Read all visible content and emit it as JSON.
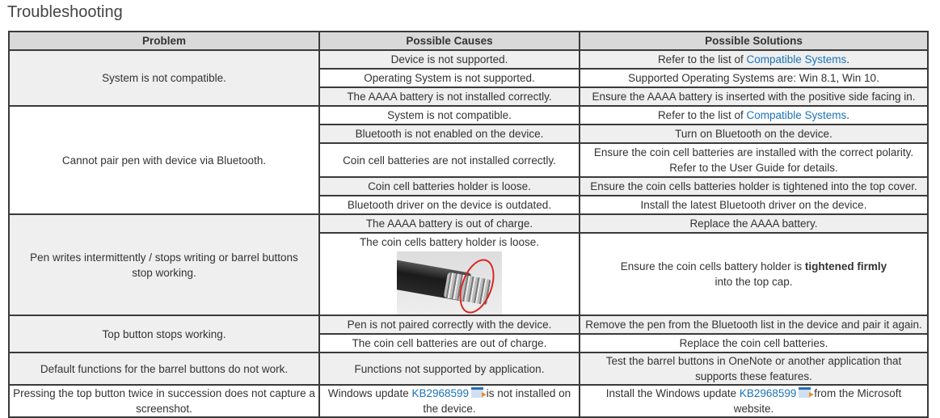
{
  "title": "Troubleshooting",
  "headers": {
    "problem": "Problem",
    "causes": "Possible Causes",
    "solutions": "Possible Solutions"
  },
  "link_color": "#1a73b8",
  "rows": [
    {
      "problem": "System is not compatible.",
      "items": [
        {
          "cause": "Device is not supported.",
          "sol_pre": "Refer to the list of ",
          "sol_link": "Compatible Systems",
          "sol_post": "."
        },
        {
          "cause": "Operating System is not supported.",
          "sol": "Supported Operating Systems are: Win 8.1, Win 10."
        },
        {
          "cause": "The AAAA battery is not installed correctly.",
          "sol": "Ensure the AAAA battery is inserted with the positive side facing in."
        }
      ]
    },
    {
      "problem": "Cannot pair pen with device via Bluetooth.",
      "items": [
        {
          "cause": "System is not compatible.",
          "sol_pre": "Refer to the list of ",
          "sol_link": "Compatible Systems",
          "sol_post": "."
        },
        {
          "cause": "Bluetooth is not enabled on the device.",
          "sol": "Turn on Bluetooth on the device."
        },
        {
          "cause": "Coin cell batteries are not installed correctly.",
          "sol": "Ensure the coin cell batteries are installed with the correct polarity. Refer to the User Guide for details."
        },
        {
          "cause": "Coin cell batteries holder is loose.",
          "sol": "Ensure the coin cells batteries holder is tightened into the top cover."
        },
        {
          "cause": "Bluetooth driver on the device is outdated.",
          "sol": "Install the latest Bluetooth driver on the device."
        }
      ]
    },
    {
      "problem": "Pen writes intermittently / stops writing or barrel buttons stop working.",
      "items": [
        {
          "cause": "The AAAA battery is out of charge.",
          "sol": "Replace the AAAA battery."
        },
        {
          "cause": "The coin cells battery holder is loose.",
          "sol_pre": "Ensure the coin cells battery holder is ",
          "sol_bold": "tightened firmly",
          "sol_post": " into the top cap."
        }
      ]
    },
    {
      "problem": "Top button stops working.",
      "items": [
        {
          "cause": "Pen is not paired correctly with the device.",
          "sol": "Remove the pen from the Bluetooth list in the device and pair it again."
        },
        {
          "cause": "The coin cell batteries are out of charge.",
          "sol": "Replace the coin cell batteries."
        }
      ]
    },
    {
      "problem": "Default functions for the barrel buttons do not work.",
      "items": [
        {
          "cause": "Functions not supported by application.",
          "sol": "Test the barrel buttons in OneNote or another application that supports these features."
        }
      ]
    },
    {
      "problem": "Pressing the top button twice in succession does not capture a screenshot.",
      "items": [
        {
          "cause_pre": "Windows update ",
          "cause_link": "KB2968599",
          "cause_post": " is not installed on the device.",
          "sol_pre": "Install the Windows update ",
          "sol_link": "KB2968599",
          "sol_post": " from the Microsoft website."
        }
      ]
    }
  ]
}
